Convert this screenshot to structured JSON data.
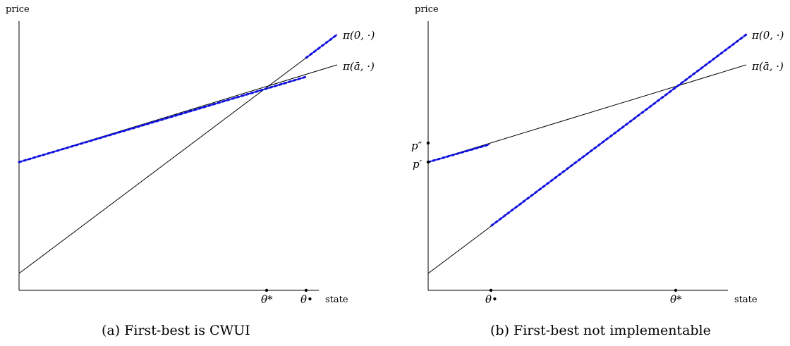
{
  "panels": [
    {
      "y_axis_label": "price",
      "x_axis_label": "state",
      "curve_labels": [
        "π(0, ·)",
        "π(ā, ·)"
      ],
      "tick_labels": [
        "θ*",
        "θ•"
      ],
      "caption": "(a) First-best is CWUI"
    },
    {
      "y_axis_label": "price",
      "x_axis_label": "state",
      "curve_labels": [
        "π(0, ·)",
        "π(ā, ·)"
      ],
      "tick_labels": [
        "θ•",
        "θ*"
      ],
      "price_labels": [
        "p″",
        "p′"
      ],
      "caption": "(b) First-best not implementable"
    }
  ],
  "colors": {
    "highlight": "#1010e0",
    "line": "#000000"
  }
}
